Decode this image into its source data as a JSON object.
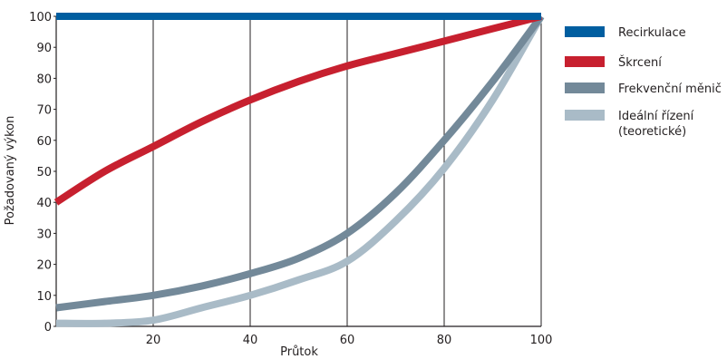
{
  "chart_data": {
    "type": "line",
    "title": "",
    "xlabel": "Průtok",
    "ylabel": "Požadovaný výkon",
    "xlim": [
      0,
      100
    ],
    "ylim": [
      0,
      100
    ],
    "x_ticks": [
      20,
      40,
      60,
      80,
      100
    ],
    "y_ticks": [
      0,
      10,
      20,
      30,
      40,
      50,
      60,
      70,
      80,
      90,
      100
    ],
    "vertical_gridlines_at": [
      20,
      40,
      60,
      80,
      100
    ],
    "legend_position": "right",
    "series": [
      {
        "name": "Recirkulace",
        "color": "#005ea0",
        "x": [
          0,
          100
        ],
        "values": [
          100,
          100
        ]
      },
      {
        "name": "Škrcení",
        "color": "#c7202f",
        "x": [
          0,
          10,
          20,
          30,
          40,
          50,
          60,
          70,
          80,
          90,
          100
        ],
        "values": [
          40,
          50,
          58,
          66,
          73,
          79,
          84,
          88,
          92,
          96,
          100
        ]
      },
      {
        "name": "Frekvenční měnič",
        "color": "#738999",
        "x": [
          0,
          10,
          20,
          30,
          40,
          50,
          60,
          70,
          80,
          90,
          100
        ],
        "values": [
          6,
          8,
          10,
          13,
          17,
          22,
          30,
          43,
          60,
          79,
          100
        ]
      },
      {
        "name": "Ideální řízení",
        "name_line2": "(teoretické)",
        "color": "#a9bbc7",
        "x": [
          0,
          10,
          20,
          30,
          40,
          50,
          60,
          70,
          80,
          90,
          100
        ],
        "values": [
          1,
          1,
          2,
          6,
          10,
          15,
          21,
          34,
          51,
          73,
          100
        ]
      }
    ]
  }
}
